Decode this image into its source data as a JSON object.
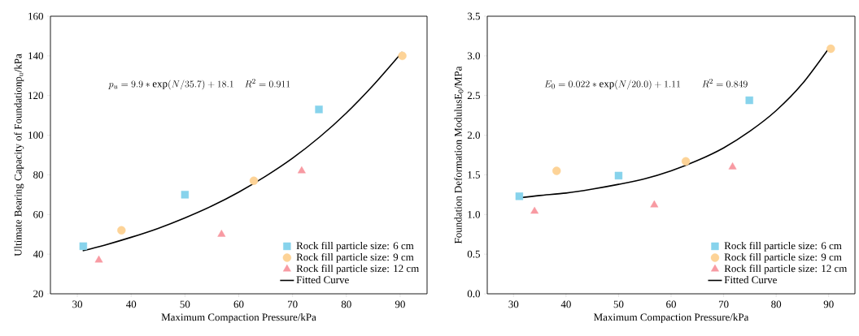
{
  "chart_data": [
    {
      "type": "scatter",
      "xlabel": "Maximum Compaction Pressure/kPa",
      "ylabel": "Ultimate Bearing Capacity of Foundationp$_{u}$/kPa",
      "annotations": [
        "p_u=9.9*\\mathrm{exp}(N/35.7)+18.1\\quad R^2=0.911"
      ],
      "xlim": [
        25,
        95
      ],
      "ylim": [
        20,
        160
      ],
      "xticks": [
        30,
        40,
        50,
        60,
        70,
        80,
        90
      ],
      "yticks": [
        20,
        40,
        60,
        80,
        100,
        120,
        140,
        160
      ],
      "legend": "bottom right",
      "grid": false,
      "series": [
        {
          "name": "Rock fill particle size: 6 cm",
          "marker": "square",
          "color": "#87d3ec",
          "x": [
            31.1,
            50,
            74.9
          ],
          "values": [
            44,
            70,
            113
          ]
        },
        {
          "name": "Rock fill particle size: 9 cm",
          "marker": "circle",
          "color": "#fdd397",
          "x": [
            38.2,
            62.8,
            90.4
          ],
          "values": [
            52,
            77,
            140
          ]
        },
        {
          "name": "Rock fill particle size: 12 cm",
          "marker": "triangle",
          "color": "#f89aa2",
          "x": [
            34,
            56.8,
            71.7
          ],
          "values": [
            37,
            50,
            82
          ]
        },
        {
          "name": "Fitted Curve",
          "type": "line",
          "marker": "none",
          "line_style": "solid",
          "color": "#000000",
          "x": [
            31,
            35,
            40,
            45,
            50,
            55,
            60,
            65,
            70,
            75,
            80,
            85,
            90.4
          ],
          "values": [
            41.7,
            44.5,
            48.5,
            53.0,
            58.3,
            64.3,
            71.3,
            79.3,
            88.4,
            99.0,
            111.2,
            125.2,
            142
          ]
        }
      ]
    },
    {
      "type": "scatter",
      "xlabel": "Maximum Compaction Pressure/kPa",
      "ylabel": "Foundation Deformation ModulusE$_{0}$/MPa",
      "annotations": [
        "E_0=0.022*\\mathrm{exp}(N/20.0)+1.11\\qquad R^2=0.849"
      ],
      "xlim": [
        25,
        95
      ],
      "ylim": [
        0,
        3.5
      ],
      "xticks": [
        30,
        40,
        50,
        60,
        70,
        80,
        90
      ],
      "yticks": [
        {
          "value": 0,
          "label": "0.0"
        },
        {
          "value": 0.5,
          "label": "0.5"
        },
        {
          "value": 1,
          "label": "1.0"
        },
        {
          "value": 1.5,
          "label": "1.5"
        },
        {
          "value": 2,
          "label": "2.0"
        },
        {
          "value": 2.5,
          "label": "2.5"
        },
        {
          "value": 3,
          "label": "3.0"
        },
        {
          "value": 3.5,
          "label": "3.5"
        }
      ],
      "legend": "bottom right",
      "grid": false,
      "series": [
        {
          "name": "Rock fill particle size: 6 cm",
          "marker": "square",
          "color": "#87d3ec",
          "x": [
            31.1,
            50,
            74.9
          ],
          "values": [
            1.23,
            1.49,
            2.44
          ]
        },
        {
          "name": "Rock fill particle size: 9 cm",
          "marker": "circle",
          "color": "#fdd397",
          "x": [
            38.2,
            62.8,
            90.4
          ],
          "values": [
            1.55,
            1.67,
            3.09
          ]
        },
        {
          "name": "Rock fill particle size: 12 cm",
          "marker": "triangle",
          "color": "#f89aa2",
          "x": [
            34,
            56.8,
            71.7
          ],
          "values": [
            1.04,
            1.12,
            1.6
          ]
        },
        {
          "name": "Fitted Curve",
          "type": "line",
          "marker": "none",
          "line_style": "solid",
          "color": "#000000",
          "x": [
            31,
            35,
            40,
            45,
            50,
            55,
            60,
            65,
            70,
            75,
            80,
            85,
            90.4
          ],
          "values": [
            1.21,
            1.24,
            1.27,
            1.32,
            1.38,
            1.45,
            1.55,
            1.68,
            1.84,
            2.05,
            2.31,
            2.65,
            3.13
          ]
        }
      ]
    }
  ]
}
